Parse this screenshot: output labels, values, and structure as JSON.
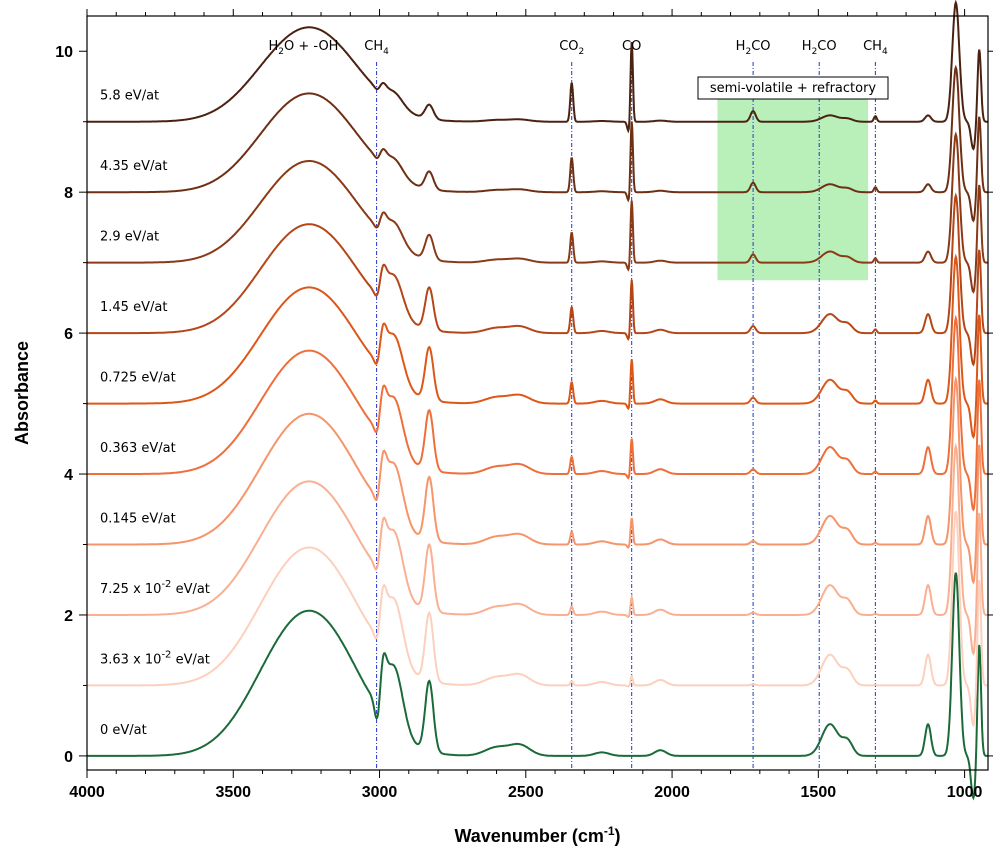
{
  "chart_data": {
    "type": "line",
    "xlabel": "Wavenumber (cm",
    "xlabel_sup": "-1",
    "xlabel_end": ")",
    "ylabel": "Absorbance",
    "xlim": [
      4000,
      920
    ],
    "ylim": [
      -0.2,
      10.5
    ],
    "x_reversed": true,
    "x_ticks": [
      4000,
      3500,
      3000,
      2500,
      2000,
      1500,
      1000
    ],
    "y_ticks": [
      0,
      2,
      4,
      6,
      8,
      10
    ],
    "grid": false,
    "series": [
      {
        "name": "0 eV/at",
        "label": "0 eV/at",
        "offset": 0,
        "color": "#1b6b3a",
        "intensity": 1.0,
        "bandScale": 1.0
      },
      {
        "name": "3.63 x 10-2 eV/at",
        "label": "3.63 x 10",
        "sup": "-2",
        "label_end": " eV/at",
        "offset": 1,
        "color": "#fcd0bd",
        "intensity": 0.95,
        "bandScale": 0.97
      },
      {
        "name": "7.25 x 10-2 eV/at",
        "label": "7.25 x 10",
        "sup": "-2",
        "label_end": " eV/at",
        "offset": 2,
        "color": "#f9b092",
        "intensity": 0.92,
        "bandScale": 0.94
      },
      {
        "name": "0.145 eV/at",
        "label": "0.145 eV/at",
        "offset": 3,
        "color": "#f6946a",
        "intensity": 0.9,
        "bandScale": 0.9
      },
      {
        "name": "0.363 eV/at",
        "label": "0.363 eV/at",
        "offset": 4,
        "color": "#ee6f3a",
        "intensity": 0.85,
        "bandScale": 0.85
      },
      {
        "name": "0.725 eV/at",
        "label": "0.725 eV/at",
        "offset": 5,
        "color": "#dd5718",
        "intensity": 0.8,
        "bandScale": 0.75
      },
      {
        "name": "1.45 eV/at",
        "label": "1.45 eV/at",
        "offset": 6,
        "color": "#b54617",
        "intensity": 0.75,
        "bandScale": 0.6
      },
      {
        "name": "2.9 eV/at",
        "label": "2.9 eV/at",
        "offset": 7,
        "color": "#8a3a17",
        "intensity": 0.7,
        "bandScale": 0.35
      },
      {
        "name": "4.35 eV/at",
        "label": "4.35 eV/at",
        "offset": 8,
        "color": "#6e3015",
        "intensity": 0.68,
        "bandScale": 0.25
      },
      {
        "name": "5.8 eV/at",
        "label": "5.8 eV/at",
        "offset": 9,
        "color": "#4a2212",
        "intensity": 0.65,
        "bandScale": 0.2
      }
    ],
    "annotations": [
      {
        "text": "H",
        "sub": "2",
        "text_end": "O + -OH",
        "x": 3260,
        "line": false
      },
      {
        "text": "CH",
        "sub": "4",
        "text_end": "",
        "x": 3010,
        "line": true
      },
      {
        "text": "CO",
        "sub": "2",
        "text_end": "",
        "x": 2343,
        "line": true
      },
      {
        "text": "CO",
        "sub": "",
        "text_end": "",
        "x": 2138,
        "line": true
      },
      {
        "text": "H",
        "sub": "2",
        "text_end": "CO",
        "x": 1723,
        "line": true
      },
      {
        "text": "H",
        "sub": "2",
        "text_end": "CO",
        "x": 1497,
        "line": true
      },
      {
        "text": "CH",
        "sub": "4",
        "text_end": "",
        "x": 1305,
        "line": true
      }
    ],
    "highlight_region": {
      "label": "semi-volatile + refractory",
      "x_range": [
        1845,
        1330
      ],
      "y_range": [
        6.75,
        9.4
      ],
      "color": "#b9f0b9"
    }
  }
}
